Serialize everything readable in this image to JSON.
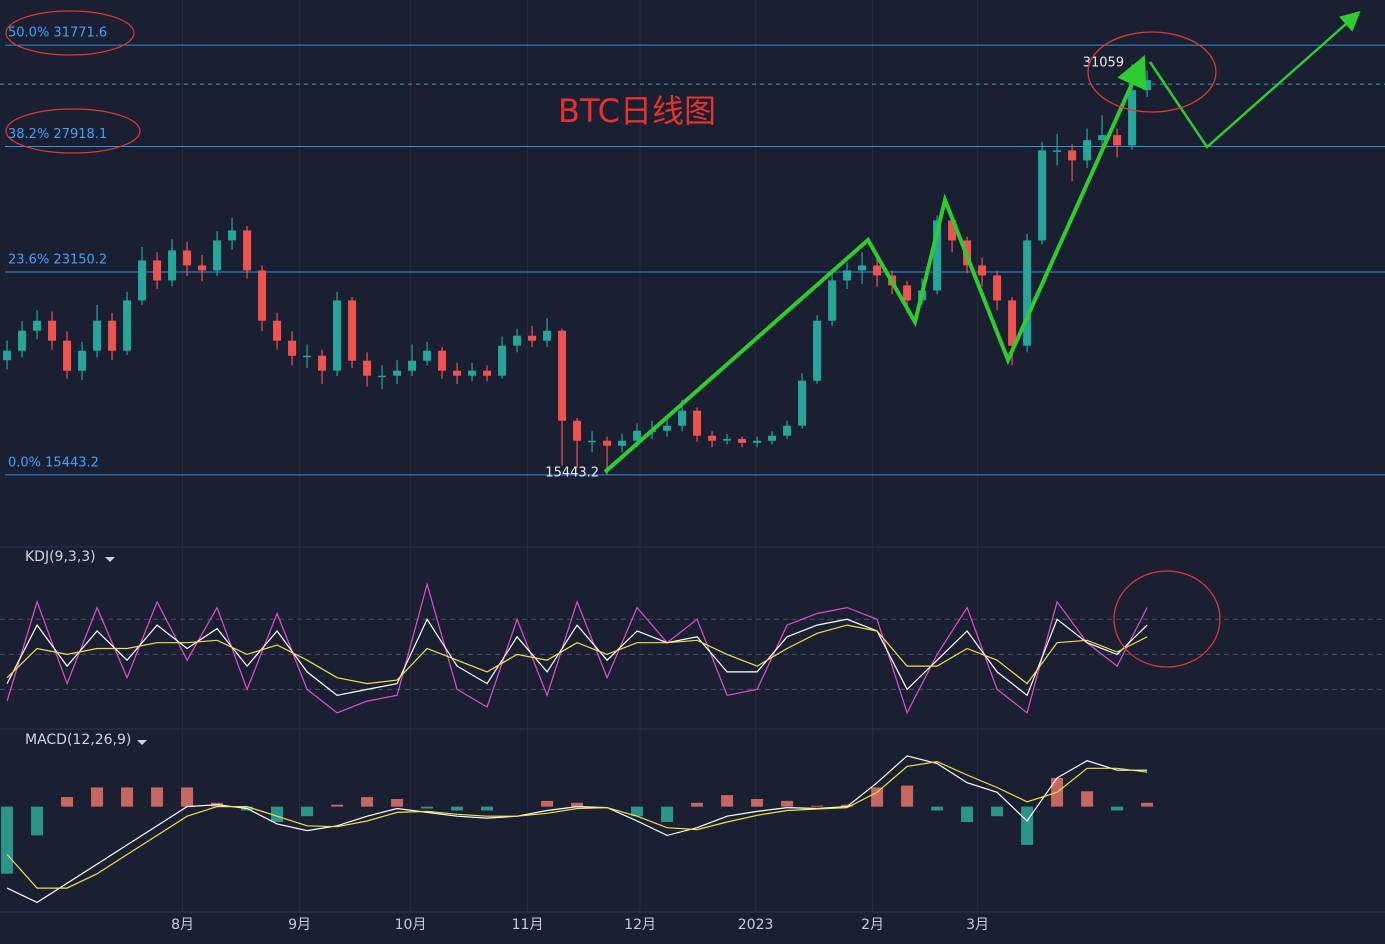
{
  "chart_data": [
    {
      "type": "candlestick",
      "title": "BTC日线图",
      "xlim": [
        -0.47,
        91.86
      ],
      "ylim": [
        12741,
        33484
      ],
      "up_color": "#26a69a",
      "down_color": "#ef5350",
      "fib_levels": [
        {
          "value": 31771.6,
          "label": "50.0% 31771.6"
        },
        {
          "value": 27918.1,
          "label": "38.2% 27918.1"
        },
        {
          "value": 23150.2,
          "label": "23.6% 23150.2"
        },
        {
          "value": 15443.2,
          "label": "0.0% 15443.2"
        }
      ],
      "current_price": 30290,
      "extreme_labels": [
        15443.2,
        31059
      ],
      "open": [
        19800,
        20160,
        20920,
        21300,
        20540,
        19400,
        20160,
        21300,
        20160,
        22070,
        23590,
        22830,
        23970,
        23400,
        23210,
        24350,
        24730,
        23210,
        21300,
        20540,
        19970,
        19970,
        19400,
        22070,
        19780,
        19210,
        19210,
        19400,
        19780,
        20160,
        19400,
        19210,
        19400,
        19210,
        20350,
        20730,
        20540,
        20920,
        17500,
        16740,
        16740,
        16550,
        16740,
        17120,
        17120,
        17310,
        17880,
        16930,
        16740,
        16810,
        16660,
        16740,
        16930,
        17310,
        19020,
        21300,
        22830,
        23210,
        23400,
        23020,
        22640,
        22070,
        22450,
        25110,
        24350,
        23400,
        23020,
        22070,
        20350,
        24350,
        27770,
        27770,
        27390,
        28160,
        28350,
        27960,
        30060
      ],
      "high": [
        20550,
        21300,
        21700,
        21650,
        20900,
        20500,
        21900,
        21600,
        22400,
        24100,
        23900,
        24400,
        24300,
        23800,
        24700,
        25200,
        24900,
        23400,
        21600,
        20900,
        20400,
        20200,
        22400,
        22200,
        20100,
        19600,
        19800,
        20400,
        20500,
        20300,
        19700,
        19700,
        19600,
        20700,
        21000,
        21100,
        21400,
        21000,
        17600,
        17100,
        16900,
        17000,
        17400,
        17500,
        17600,
        18300,
        18000,
        17100,
        17000,
        16900,
        16900,
        17100,
        17500,
        19300,
        21500,
        23200,
        23500,
        23900,
        23700,
        23200,
        22800,
        22900,
        25300,
        25200,
        24500,
        23700,
        23200,
        22200,
        24600,
        28100,
        28400,
        28000,
        28600,
        29100,
        28600,
        31059,
        30800
      ],
      "low": [
        19450,
        19900,
        20600,
        20200,
        19100,
        19050,
        19900,
        19800,
        20000,
        21900,
        22500,
        22600,
        23000,
        22800,
        23000,
        24000,
        22900,
        20900,
        20200,
        19600,
        19500,
        18900,
        19200,
        19500,
        18800,
        18700,
        18900,
        19200,
        19600,
        19100,
        18900,
        19000,
        19000,
        19100,
        20100,
        20300,
        20300,
        15800,
        15700,
        16300,
        15443.2,
        16300,
        16500,
        16800,
        16900,
        17100,
        16700,
        16500,
        16600,
        16500,
        16500,
        16600,
        16800,
        17200,
        18900,
        21100,
        22500,
        22700,
        22600,
        22300,
        21600,
        21900,
        22300,
        23900,
        23100,
        22600,
        21700,
        19600,
        20100,
        24200,
        27200,
        26600,
        27100,
        27800,
        27500,
        27800,
        29800
      ],
      "close": [
        20160,
        20920,
        21300,
        20540,
        19400,
        20160,
        21300,
        20160,
        22070,
        23590,
        22830,
        23970,
        23400,
        23210,
        24350,
        24730,
        23210,
        21300,
        20540,
        19970,
        19970,
        19400,
        22070,
        19780,
        19210,
        19210,
        19400,
        19780,
        20160,
        19400,
        19210,
        19400,
        19210,
        20350,
        20730,
        20540,
        20920,
        17500,
        16740,
        16740,
        16550,
        16740,
        17120,
        17120,
        17310,
        17880,
        16930,
        16740,
        16810,
        16660,
        16740,
        16930,
        17310,
        19020,
        21300,
        22830,
        23210,
        23400,
        23020,
        22640,
        22070,
        22450,
        25110,
        24350,
        23400,
        23020,
        22070,
        20350,
        24350,
        27770,
        27770,
        27390,
        28160,
        28350,
        27960,
        30060,
        30440
      ]
    },
    {
      "type": "line",
      "title": "KDJ(9,3,3)",
      "xlim": [
        -0.47,
        91.86
      ],
      "ylim": [
        -13,
        141
      ],
      "hlines": [
        20,
        50,
        80
      ],
      "x": [
        0,
        2,
        4,
        6,
        8,
        10,
        12,
        14,
        16,
        18,
        20,
        22,
        24,
        26,
        28,
        30,
        32,
        34,
        36,
        38,
        40,
        42,
        44,
        46,
        48,
        50,
        52,
        54,
        56,
        58,
        60,
        62,
        64,
        66,
        68,
        70,
        72,
        74,
        76
      ],
      "series": [
        {
          "color": "#e04fd0",
          "values": [
            10,
            95,
            25,
            90,
            30,
            95,
            45,
            90,
            20,
            85,
            20,
            0,
            10,
            15,
            110,
            20,
            5,
            80,
            15,
            95,
            30,
            90,
            60,
            80,
            15,
            20,
            75,
            85,
            90,
            80,
            0,
            50,
            90,
            20,
            0,
            95,
            60,
            40,
            90
          ]
        },
        {
          "color": "#ffffff",
          "values": [
            25,
            75,
            40,
            70,
            45,
            75,
            55,
            72,
            40,
            70,
            35,
            15,
            20,
            25,
            80,
            40,
            25,
            65,
            35,
            75,
            45,
            70,
            60,
            65,
            35,
            35,
            65,
            75,
            80,
            70,
            20,
            45,
            70,
            35,
            15,
            80,
            60,
            50,
            75
          ]
        },
        {
          "color": "#f0e04a",
          "values": [
            30,
            55,
            50,
            55,
            55,
            60,
            60,
            62,
            50,
            58,
            45,
            30,
            25,
            28,
            55,
            45,
            35,
            50,
            45,
            60,
            50,
            60,
            60,
            62,
            50,
            40,
            55,
            68,
            75,
            70,
            40,
            40,
            55,
            45,
            25,
            60,
            62,
            52,
            65
          ]
        }
      ]
    },
    {
      "type": "macd",
      "title": "MACD(12,26,9)",
      "xlim": [
        -0.47,
        91.86
      ],
      "ylim": [
        -1100,
        800
      ],
      "xticks": [
        {
          "value": 11.7,
          "label": "8月"
        },
        {
          "value": 19.5,
          "label": "9月"
        },
        {
          "value": 26.9,
          "label": "10月"
        },
        {
          "value": 34.7,
          "label": "11月"
        },
        {
          "value": 42.2,
          "label": "12月"
        },
        {
          "value": 49.9,
          "label": "2023"
        },
        {
          "value": 57.7,
          "label": "2月"
        },
        {
          "value": 64.7,
          "label": "3月"
        }
      ],
      "x": [
        0,
        2,
        4,
        6,
        8,
        10,
        12,
        14,
        16,
        18,
        20,
        22,
        24,
        26,
        28,
        30,
        32,
        34,
        36,
        38,
        40,
        42,
        44,
        46,
        48,
        50,
        52,
        54,
        56,
        58,
        60,
        62,
        64,
        66,
        68,
        70,
        72,
        74,
        76
      ],
      "histogram": {
        "up_color": "#f07a6e",
        "down_color": "#2fb3a0",
        "values": [
          -700,
          -300,
          100,
          200,
          200,
          200,
          200,
          40,
          -40,
          -160,
          -100,
          20,
          100,
          80,
          -20,
          -40,
          -40,
          0,
          60,
          40,
          0,
          -100,
          -160,
          40,
          120,
          80,
          60,
          10,
          20,
          200,
          220,
          -40,
          -160,
          -100,
          -400,
          300,
          160,
          -40,
          40
        ]
      },
      "series": [
        {
          "color": "#ffffff",
          "values": [
            -850,
            -1000,
            -800,
            -600,
            -400,
            -200,
            0,
            20,
            -20,
            -180,
            -250,
            -200,
            -100,
            -20,
            -60,
            -100,
            -120,
            -100,
            -40,
            0,
            -10,
            -150,
            -300,
            -220,
            -100,
            -50,
            -10,
            -20,
            0,
            250,
            530,
            450,
            250,
            150,
            -150,
            300,
            480,
            380,
            380
          ]
        },
        {
          "color": "#f0e04a",
          "values": [
            -500,
            -850,
            -850,
            -700,
            -500,
            -300,
            -100,
            0,
            0,
            -100,
            -200,
            -210,
            -150,
            -60,
            -50,
            -80,
            -100,
            -100,
            -70,
            -20,
            -10,
            -100,
            -220,
            -240,
            -160,
            -90,
            -40,
            -25,
            -10,
            150,
            420,
            470,
            330,
            200,
            50,
            150,
            400,
            400,
            360
          ]
        }
      ]
    }
  ]
}
